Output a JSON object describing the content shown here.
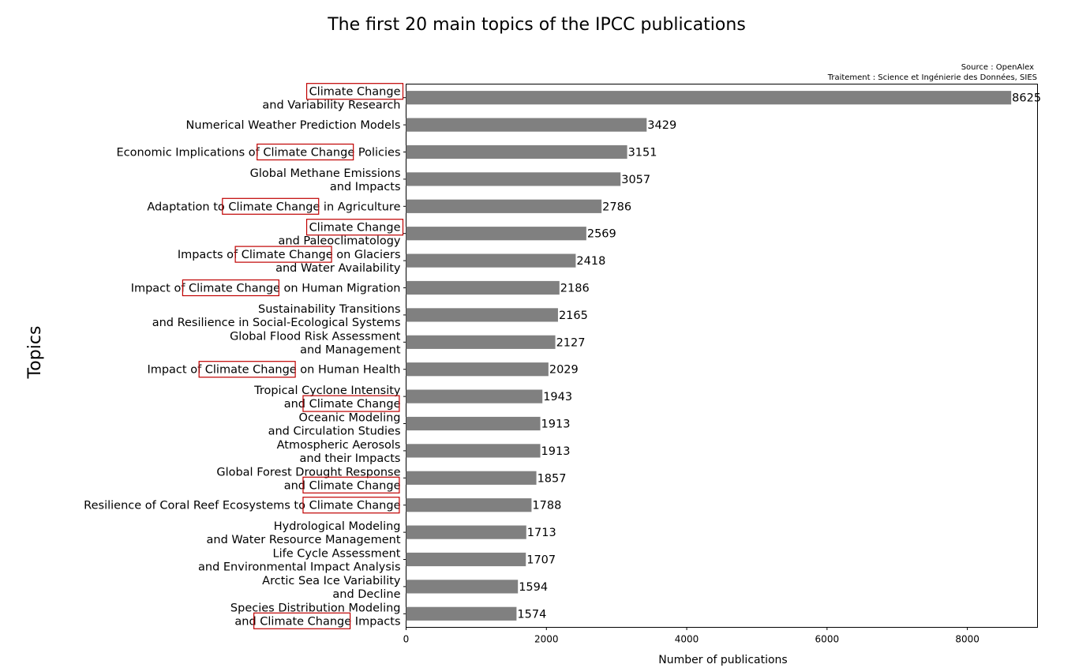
{
  "chart_data": {
    "type": "bar",
    "orientation": "horizontal",
    "title": "The first 20 main  topics  of the IPCC publications",
    "source_lines": [
      "Source : OpenAlex",
      "Traitement : Science et Ingénierie des Données, SIES"
    ],
    "xlabel": "Number of publications",
    "ylabel": "Topics",
    "xlim": [
      0,
      9000
    ],
    "xticks": [
      0,
      2000,
      4000,
      6000,
      8000
    ],
    "grid": false,
    "bar_color": "#808080",
    "highlight_color": "#c00000",
    "highlight_phrase": "Climate Change",
    "categories": [
      [
        "Climate Change",
        "and Variability Research"
      ],
      [
        "Numerical Weather Prediction Models"
      ],
      [
        "Economic Implications of Climate Change Policies"
      ],
      [
        "Global Methane Emissions",
        "and Impacts"
      ],
      [
        "Adaptation to Climate Change in Agriculture"
      ],
      [
        "Climate Change",
        "and Paleoclimatology"
      ],
      [
        "Impacts of Climate Change on Glaciers",
        "and Water Availability"
      ],
      [
        "Impact of Climate Change on Human Migration"
      ],
      [
        "Sustainability Transitions",
        "and Resilience in Social-Ecological Systems"
      ],
      [
        "Global Flood Risk Assessment",
        "and Management"
      ],
      [
        "Impact of Climate Change on Human Health"
      ],
      [
        "Tropical Cyclone Intensity",
        "and Climate Change"
      ],
      [
        "Oceanic Modeling",
        "and Circulation Studies"
      ],
      [
        "Atmospheric Aerosols",
        "and their Impacts"
      ],
      [
        "Global Forest Drought Response",
        "and Climate Change"
      ],
      [
        "Resilience of Coral Reef Ecosystems to Climate Change"
      ],
      [
        "Hydrological Modeling",
        "and Water Resource Management"
      ],
      [
        "Life Cycle Assessment",
        "and Environmental Impact Analysis"
      ],
      [
        "Arctic Sea Ice Variability",
        "and Decline"
      ],
      [
        "Species Distribution Modeling",
        "and Climate Change Impacts"
      ]
    ],
    "values": [
      8625,
      3429,
      3151,
      3057,
      2786,
      2569,
      2418,
      2186,
      2165,
      2127,
      2029,
      1943,
      1913,
      1913,
      1857,
      1788,
      1713,
      1707,
      1594,
      1574
    ]
  }
}
